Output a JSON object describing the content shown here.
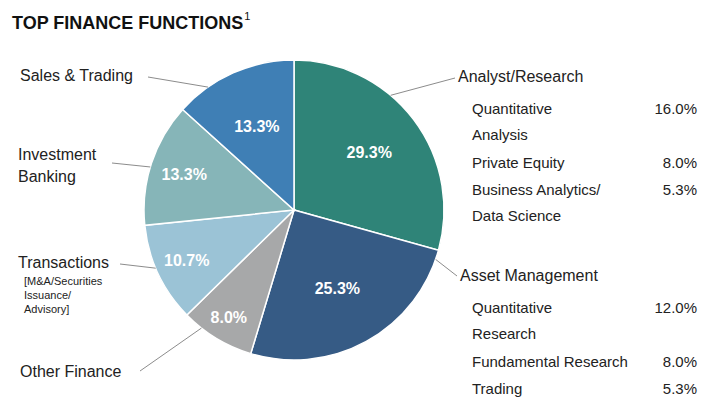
{
  "chart_data": {
    "type": "pie",
    "title": "TOP FINANCE FUNCTIONS",
    "title_note": "1",
    "categories": [
      "Analyst/Research",
      "Asset Management",
      "Other Finance",
      "Transactions",
      "Investment Banking",
      "Sales & Trading"
    ],
    "category_notes": [
      null,
      null,
      null,
      "[M&A/Securities Issuance/ Advisory]",
      null,
      null
    ],
    "values": [
      29.3,
      25.3,
      8.0,
      10.7,
      13.3,
      13.3
    ],
    "value_labels": [
      "29.3%",
      "25.3%",
      "8.0%",
      "10.7%",
      "13.3%",
      "13.3%"
    ],
    "colors": [
      "#2f8478",
      "#365b85",
      "#a7a8a9",
      "#9bc3d6",
      "#86b5b8",
      "#3f7fb5"
    ],
    "data_labels": true,
    "breakdowns": [
      {
        "labels": [
          "Quantitative Analysis",
          "Private Equity",
          "Business Analytics/ Data Science"
        ],
        "values": [
          16.0,
          8.0,
          5.3
        ],
        "value_labels": [
          "16.0%",
          "8.0%",
          "5.3%"
        ]
      },
      {
        "labels": [
          "Quantitative Research",
          "Fundamental Research",
          "Trading"
        ],
        "values": [
          12.0,
          8.0,
          5.3
        ],
        "value_labels": [
          "12.0%",
          "8.0%",
          "5.3%"
        ]
      },
      null,
      null,
      null,
      null
    ]
  }
}
